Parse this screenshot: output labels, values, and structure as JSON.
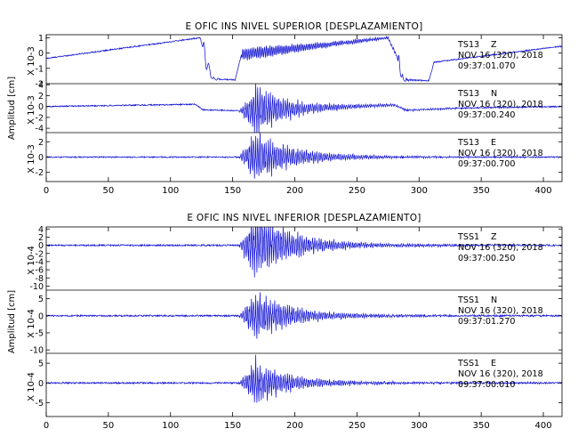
{
  "chart_data": [
    {
      "type": "line",
      "title": "E OFIC INS NIVEL SUPERIOR [DESPLAZAMIENTO]",
      "xlim": [
        0,
        415
      ],
      "xticks": [
        0,
        50,
        100,
        150,
        200,
        250,
        300,
        350,
        400
      ],
      "ylabel": "Amplitud [cm]",
      "panels": [
        {
          "station": "TS13",
          "component": "Z",
          "date": "NOV 16 (320), 2018",
          "time": "09:37:01.070",
          "scale": "X 10-3",
          "ylim": [
            -2,
            1.2
          ],
          "yticks": [
            1,
            0,
            -1,
            -2
          ],
          "waveform": "sawtooth",
          "drift": [
            [
              0,
              -0.35
            ],
            [
              124,
              1.0
            ],
            [
              128,
              -0.4
            ],
            [
              134,
              -1.7
            ],
            [
              152,
              -1.75
            ],
            [
              157,
              -0.1
            ],
            [
              167,
              0.0
            ],
            [
              275,
              1.0
            ],
            [
              282,
              -0.2
            ],
            [
              287,
              -1.75
            ],
            [
              308,
              -1.8
            ],
            [
              312,
              -0.6
            ],
            [
              415,
              0.45
            ]
          ],
          "burst_amp": 0.45
        },
        {
          "station": "TS13",
          "component": "N",
          "date": "NOV 16 (320), 2018",
          "time": "09:37:00.240",
          "scale": "X 10-3",
          "ylim": [
            -4.8,
            4.2
          ],
          "yticks": [
            4,
            2,
            0,
            -2,
            -4
          ],
          "waveform": "burst",
          "drift": [
            [
              0,
              0.0
            ],
            [
              120,
              0.4
            ],
            [
              126,
              -0.6
            ],
            [
              160,
              -0.8
            ],
            [
              280,
              0.3
            ],
            [
              290,
              -0.7
            ],
            [
              330,
              -0.3
            ],
            [
              415,
              0.0
            ]
          ],
          "burst_amp": 3.9
        },
        {
          "station": "TS13",
          "component": "E",
          "date": "NOV 16 (320), 2018",
          "time": "09:37:00.700",
          "scale": "X 10-3",
          "ylim": [
            -3.2,
            3.2
          ],
          "yticks": [
            2,
            0,
            -2
          ],
          "waveform": "burst",
          "drift": [
            [
              0,
              0.0
            ],
            [
              415,
              0.0
            ]
          ],
          "burst_amp": 3.0
        }
      ]
    },
    {
      "type": "line",
      "title": "E OFIC INS NIVEL INFERIOR [DESPLAZAMIENTO]",
      "xlim": [
        0,
        415
      ],
      "xticks": [
        0,
        50,
        100,
        150,
        200,
        250,
        300,
        350,
        400
      ],
      "ylabel": "Amplitud [cm]",
      "panels": [
        {
          "station": "TSS1",
          "component": "Z",
          "date": "NOV 16 (320), 2018",
          "time": "09:37:00.250",
          "scale": "X 10-4",
          "ylim": [
            -11,
            4.5
          ],
          "yticks": [
            4,
            2,
            0,
            -2,
            -4,
            -6,
            -8,
            -10
          ],
          "waveform": "burst",
          "drift": [
            [
              0,
              0.0
            ],
            [
              415,
              0.0
            ]
          ],
          "burst_amp": 7.5
        },
        {
          "station": "TSS1",
          "component": "N",
          "date": "NOV 16 (320), 2018",
          "time": "09:37:01.270",
          "scale": "X 10-4",
          "ylim": [
            -11,
            7.5
          ],
          "yticks": [
            5,
            0,
            -5,
            -10
          ],
          "waveform": "burst",
          "drift": [
            [
              0,
              0.0
            ],
            [
              415,
              0.0
            ]
          ],
          "burst_amp": 6.5
        },
        {
          "station": "TSS1",
          "component": "E",
          "date": "NOV 16 (320), 2018",
          "time": "09:37:00.010",
          "scale": "X 10-4",
          "ylim": [
            -8.5,
            7.5
          ],
          "yticks": [
            5,
            0,
            -5
          ],
          "waveform": "burst",
          "drift": [
            [
              0,
              0.0
            ],
            [
              415,
              0.0
            ]
          ],
          "burst_amp": 5.0
        }
      ]
    }
  ]
}
